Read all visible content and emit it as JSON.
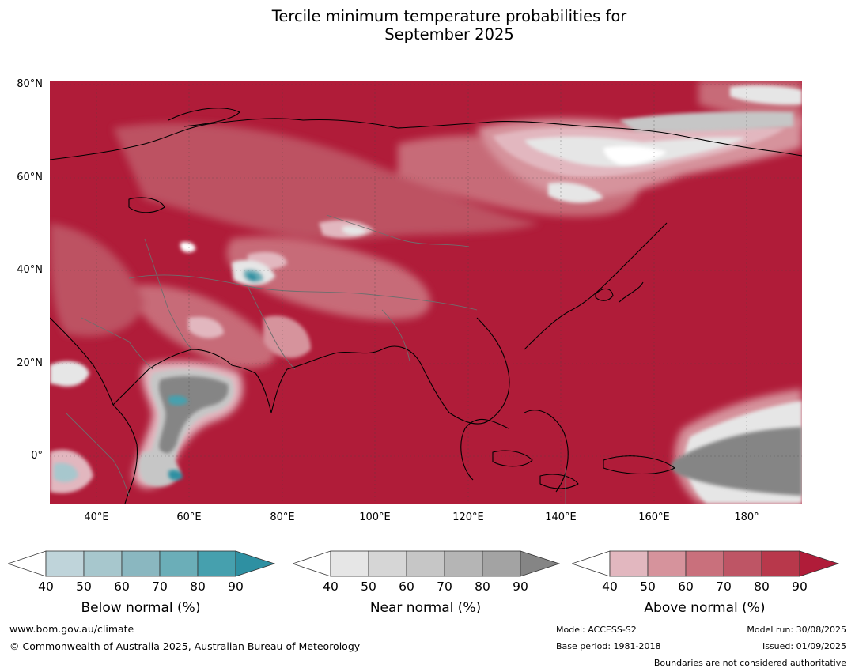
{
  "title": {
    "line1": "Tercile minimum temperature probabilities for",
    "line2": "September 2025"
  },
  "map": {
    "lat_labels": [
      "80°N",
      "60°N",
      "40°N",
      "20°N",
      "0°"
    ],
    "lon_labels": [
      "40°E",
      "60°E",
      "80°E",
      "100°E",
      "120°E",
      "140°E",
      "160°E",
      "180°"
    ],
    "dominant_fill": "above normal, 90%",
    "region_fills": [
      {
        "region": "Northeast Siberia",
        "category": "near normal / low probability"
      },
      {
        "region": "Arabian Sea",
        "category": "near normal 70-90%, below normal pocket"
      },
      {
        "region": "Equatorial central Pacific",
        "category": "near normal 90%+"
      },
      {
        "region": "Tibetan Plateau / Pamir",
        "category": "below normal patches"
      }
    ]
  },
  "colorbars": [
    {
      "title": "Below normal (%)",
      "ticks": [
        "40",
        "50",
        "60",
        "70",
        "80",
        "90"
      ],
      "colors": [
        "#ffffff",
        "#bfd4da",
        "#a7c7cd",
        "#8ab7c0",
        "#6baeb8",
        "#46a0ae",
        "#2e90a2"
      ]
    },
    {
      "title": "Near normal (%)",
      "ticks": [
        "40",
        "50",
        "60",
        "70",
        "80",
        "90"
      ],
      "colors": [
        "#ffffff",
        "#e6e6e6",
        "#d6d6d6",
        "#c6c6c6",
        "#b5b5b5",
        "#a3a3a3",
        "#858585"
      ]
    },
    {
      "title": "Above normal (%)",
      "ticks": [
        "40",
        "50",
        "60",
        "70",
        "80",
        "90"
      ],
      "colors": [
        "#ffffff",
        "#e2b7bf",
        "#d6939c",
        "#c9707c",
        "#be5565",
        "#b8384b",
        "#b01c39"
      ]
    }
  ],
  "footer": {
    "website": "www.bom.gov.au/climate",
    "copyright": "© Commonwealth of Australia 2025, Australian Bureau of Meteorology",
    "model": "Model: ACCESS-S2",
    "base_period": "Base period: 1981-2018",
    "model_run": "Model run: 30/08/2025",
    "issued": "Issued: 01/09/2025",
    "boundaries": "Boundaries are not considered authoritative"
  }
}
